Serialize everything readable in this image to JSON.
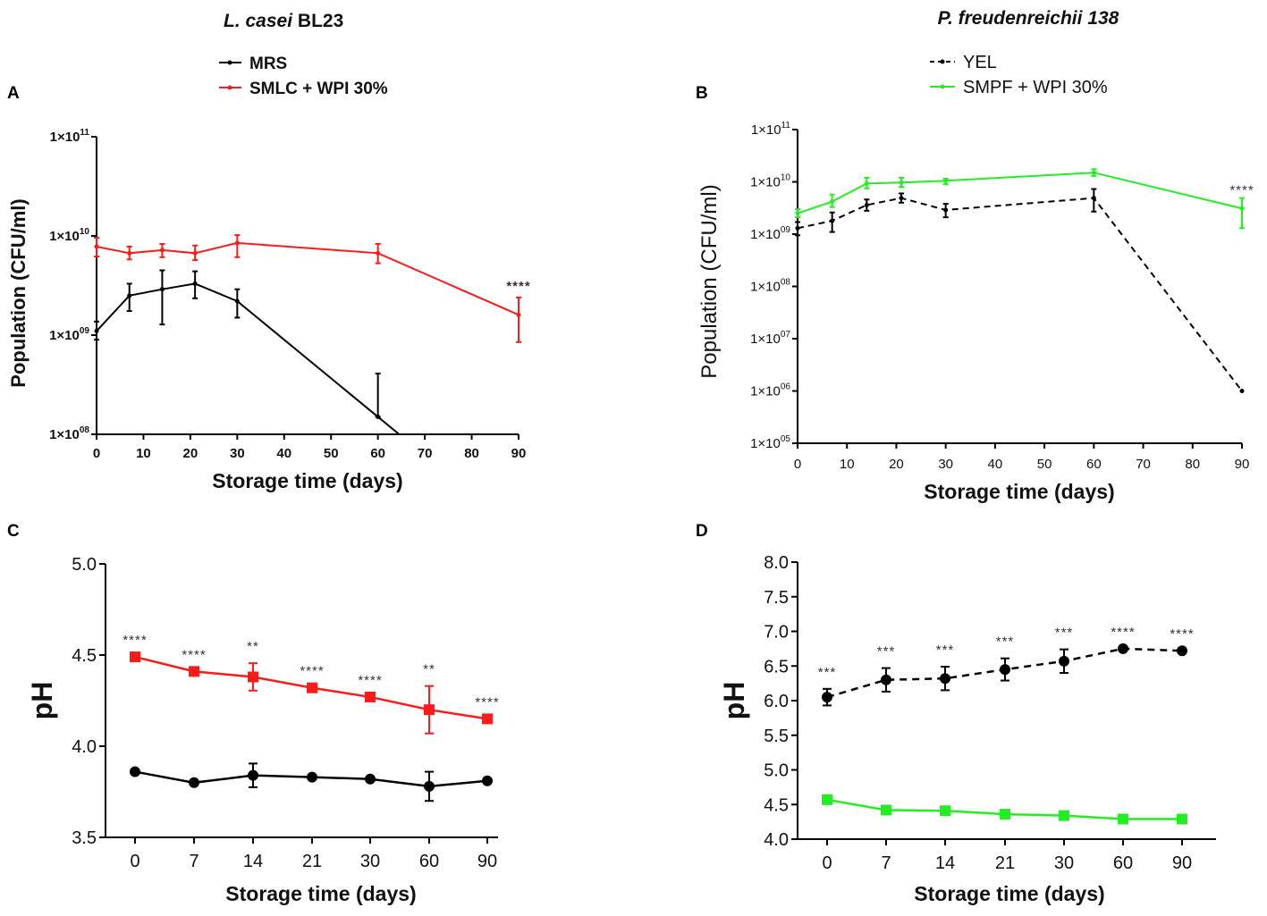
{
  "colors": {
    "black": "#000000",
    "red": "#ff1a1a",
    "green": "#22ee22"
  },
  "chart_data": [
    {
      "panel": "A",
      "type": "line",
      "title_italic": "L. casei",
      "title_rest": "BL23",
      "xlabel": "Storage time (days)",
      "ylabel": "Population (CFU/ml)",
      "yscale": "log",
      "ylim": [
        100000000.0,
        100000000000.0
      ],
      "xlim": [
        0,
        90
      ],
      "xticks": [
        0,
        10,
        20,
        30,
        40,
        50,
        60,
        70,
        80,
        90
      ],
      "yticks": [
        {
          "base": "1×10",
          "exp": "08",
          "value": 100000000.0
        },
        {
          "base": "1×10",
          "exp": "09",
          "value": 1000000000.0
        },
        {
          "base": "1×10",
          "exp": "10",
          "value": 10000000000.0
        },
        {
          "base": "1×10",
          "exp": "11",
          "value": 100000000000.0
        }
      ],
      "legend_placement": "top",
      "x": [
        0,
        7,
        14,
        21,
        30,
        60,
        90
      ],
      "series": [
        {
          "name": "MRS",
          "color": "#000000",
          "dashed": false,
          "marker": "small-dot",
          "values": [
            1100000000.0,
            2500000000.0,
            2900000000.0,
            3300000000.0,
            2200000000.0,
            150000000.0,
            null
          ],
          "err_low": [
            900000000.0,
            1750000000.0,
            1280000000.0,
            2350000000.0,
            1500000000.0,
            150000000.0,
            null
          ],
          "err_high": [
            1370000000.0,
            3300000000.0,
            4500000000.0,
            4400000000.0,
            2900000000.0,
            410000000.0,
            null
          ],
          "note_below_axis_after_day": 60
        },
        {
          "name": "SMLC + WPI 30%",
          "color": "#ff1a1a",
          "dashed": false,
          "marker": "small-dot",
          "values": [
            7800000000.0,
            6700000000.0,
            7200000000.0,
            6700000000.0,
            8500000000.0,
            6700000000.0,
            1600000000.0
          ],
          "err_low": [
            6200000000.0,
            5800000000.0,
            6100000000.0,
            5700000000.0,
            6100000000.0,
            5300000000.0,
            850000000.0
          ],
          "err_high": [
            9600000000.0,
            7800000000.0,
            8300000000.0,
            8000000000.0,
            10200000000.0,
            8300000000.0,
            2400000000.0
          ]
        }
      ],
      "annotations": [
        {
          "x": 90,
          "text": "****"
        }
      ]
    },
    {
      "panel": "B",
      "type": "line",
      "title_italic": "P. freudenreichii 138",
      "xlabel": "Storage time (days)",
      "ylabel": "Population (CFU/ml)",
      "yscale": "log",
      "ylim": [
        100000.0,
        100000000000.0
      ],
      "xlim": [
        0,
        90
      ],
      "xticks": [
        0,
        10,
        20,
        30,
        40,
        50,
        60,
        70,
        80,
        90
      ],
      "yticks": [
        {
          "base": "1×10",
          "exp": "05",
          "value": 100000.0
        },
        {
          "base": "1×10",
          "exp": "06",
          "value": 1000000.0
        },
        {
          "base": "1×10",
          "exp": "07",
          "value": 10000000.0
        },
        {
          "base": "1×10",
          "exp": "08",
          "value": 100000000.0
        },
        {
          "base": "1×10",
          "exp": "09",
          "value": 1000000000.0
        },
        {
          "base": "1×10",
          "exp": "10",
          "value": 10000000000.0
        },
        {
          "base": "1×10",
          "exp": "11",
          "value": 100000000000.0
        }
      ],
      "legend_placement": "top",
      "x": [
        0,
        7,
        14,
        21,
        30,
        60,
        90
      ],
      "series": [
        {
          "name": "YEL",
          "color": "#000000",
          "dashed": true,
          "marker": "small-dot",
          "values": [
            1300000000.0,
            1800000000.0,
            3600000000.0,
            4900000000.0,
            2900000000.0,
            4900000000.0,
            1000000.0
          ],
          "err_low": [
            950000000.0,
            1100000000.0,
            2800000000.0,
            4000000000.0,
            2100000000.0,
            2700000000.0,
            null
          ],
          "err_high": [
            1700000000.0,
            2600000000.0,
            4600000000.0,
            6000000000.0,
            3800000000.0,
            7300000000.0,
            null
          ]
        },
        {
          "name": "SMPF + WPI 30%",
          "color": "#22ee22",
          "dashed": false,
          "marker": "small-dot",
          "values": [
            2500000000.0,
            4200000000.0,
            9300000000.0,
            9700000000.0,
            10500000000.0,
            15000000000.0,
            3100000000.0
          ],
          "err_low": [
            2100000000.0,
            3300000000.0,
            7500000000.0,
            8000000000.0,
            9000000000.0,
            13000000000.0,
            1300000000.0
          ],
          "err_high": [
            3000000000.0,
            5700000000.0,
            12000000000.0,
            12000000000.0,
            11500000000.0,
            17500000000.0,
            4900000000.0
          ]
        }
      ],
      "annotations": [
        {
          "x": 90,
          "text": "****"
        }
      ]
    },
    {
      "panel": "C",
      "type": "line",
      "xlabel": "Storage time (days)",
      "ylabel": "pH",
      "ylim": [
        3.5,
        5.0
      ],
      "categories": [
        "0",
        "7",
        "14",
        "21",
        "30",
        "60",
        "90"
      ],
      "yticks": [
        "3.5",
        "4.0",
        "4.5",
        "5.0"
      ],
      "series": [
        {
          "color": "#ff1a1a",
          "dashed": false,
          "marker": "square",
          "values": [
            4.49,
            4.41,
            4.38,
            4.32,
            4.27,
            4.2,
            4.15
          ],
          "err": [
            0,
            0,
            0.075,
            0,
            0,
            0.13,
            0
          ]
        },
        {
          "color": "#000000",
          "dashed": false,
          "marker": "circle",
          "values": [
            3.86,
            3.8,
            3.84,
            3.83,
            3.82,
            3.78,
            3.81
          ],
          "err": [
            0,
            0,
            0.065,
            0,
            0,
            0.08,
            0
          ]
        }
      ],
      "annotations": [
        "****",
        "****",
        "**",
        "****",
        "****",
        "**",
        "****"
      ]
    },
    {
      "panel": "D",
      "type": "line",
      "xlabel": "Storage time (days)",
      "ylabel": "pH",
      "ylim": [
        4.0,
        8.0
      ],
      "categories": [
        "0",
        "7",
        "14",
        "21",
        "30",
        "60",
        "90"
      ],
      "yticks": [
        "4.0",
        "4.5",
        "5.0",
        "5.5",
        "6.0",
        "6.5",
        "7.0",
        "7.5",
        "8.0"
      ],
      "series": [
        {
          "color": "#000000",
          "dashed": true,
          "marker": "circle",
          "values": [
            6.05,
            6.3,
            6.32,
            6.45,
            6.57,
            6.75,
            6.72
          ],
          "err": [
            0.12,
            0.17,
            0.17,
            0.16,
            0.17,
            0,
            0
          ]
        },
        {
          "color": "#22ee22",
          "dashed": false,
          "marker": "square",
          "values": [
            4.57,
            4.42,
            4.41,
            4.36,
            4.34,
            4.29,
            4.29
          ],
          "err": [
            0,
            0,
            0,
            0,
            0,
            0,
            0
          ]
        }
      ],
      "annotations": [
        "***",
        "***",
        "***",
        "***",
        "***",
        "****",
        "****"
      ]
    }
  ]
}
